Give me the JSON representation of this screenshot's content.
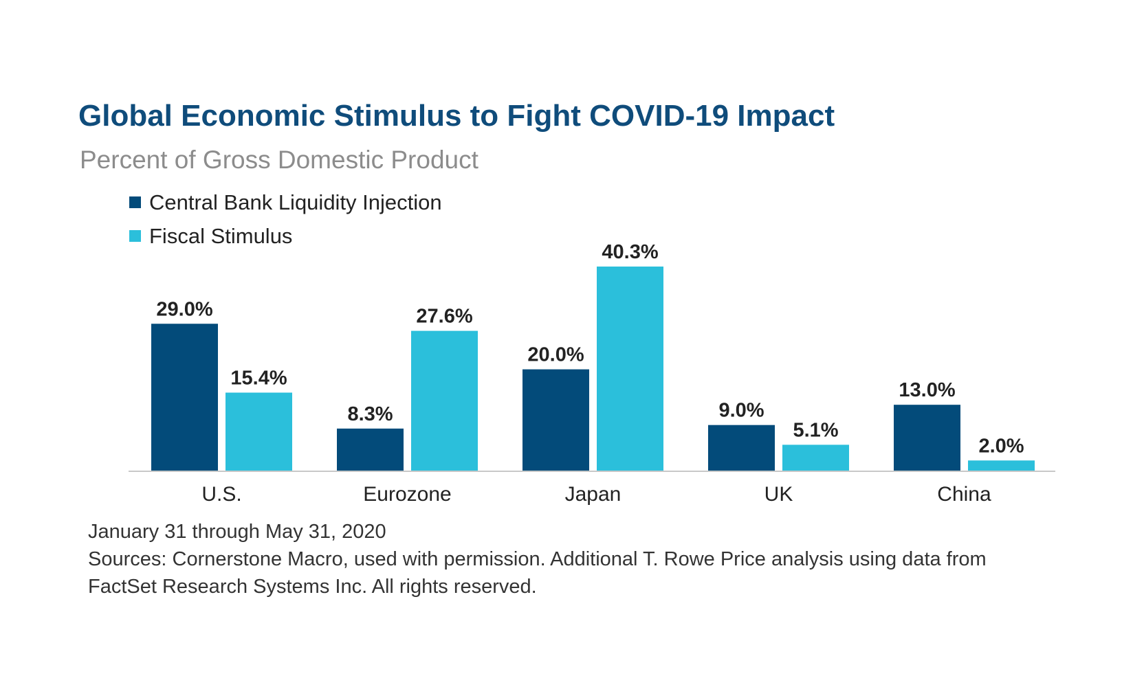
{
  "colors": {
    "title": "#0f4c7b",
    "series_central_bank": "#034b7a",
    "series_fiscal": "#2bbfdb",
    "axis": "#c8c8c8"
  },
  "chart_data": {
    "type": "bar",
    "title": "Global Economic Stimulus to Fight COVID-19 Impact",
    "subtitle": "Percent of Gross Domestic Product",
    "xlabel": "",
    "ylabel": "",
    "ylim": [
      0,
      42
    ],
    "grid": false,
    "legend_position": "top-left",
    "categories": [
      "U.S.",
      "Eurozone",
      "Japan",
      "UK",
      "China"
    ],
    "series": [
      {
        "name": "Central Bank Liquidity Injection",
        "values": [
          29.0,
          8.3,
          20.0,
          9.0,
          13.0
        ],
        "labels": [
          "29.0%",
          "8.3%",
          "20.0%",
          "9.0%",
          "13.0%"
        ]
      },
      {
        "name": "Fiscal Stimulus",
        "values": [
          15.4,
          27.6,
          40.3,
          5.1,
          2.0
        ],
        "labels": [
          "15.4%",
          "27.6%",
          "40.3%",
          "5.1%",
          "2.0%"
        ]
      }
    ]
  },
  "footnote": {
    "period": "January 31 through May 31, 2020",
    "sources_line1": "Sources: Cornerstone Macro, used with permission. Additional T. Rowe Price analysis using data from",
    "sources_line2": "FactSet Research Systems Inc. All rights reserved."
  }
}
